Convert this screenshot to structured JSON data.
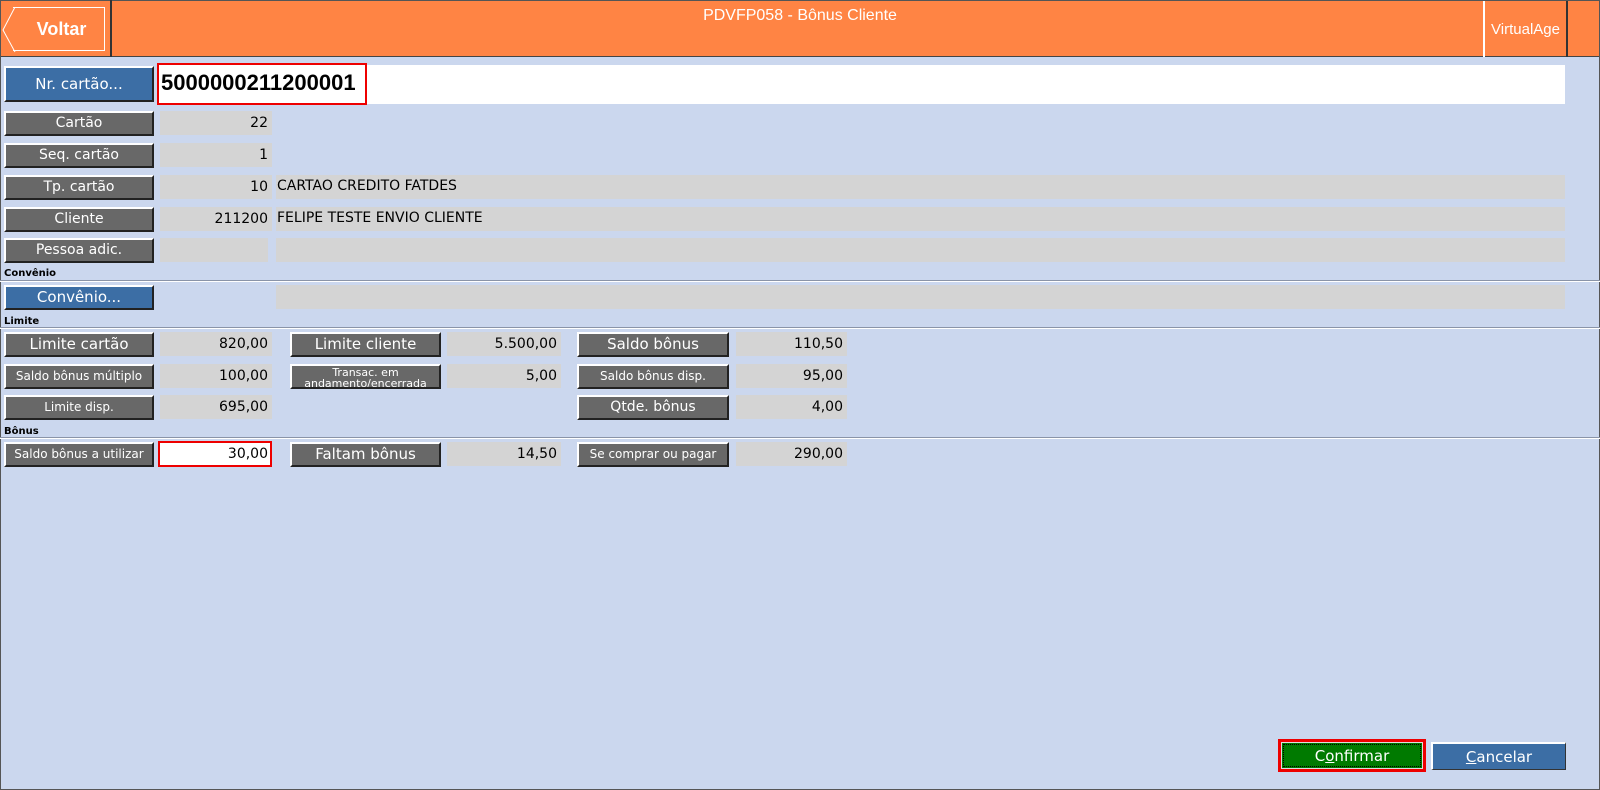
{
  "header": {
    "title": "PDVFP058 - Bônus Cliente",
    "back_label": "Voltar",
    "app_label": "VirtualAge",
    "color": "#ff8444"
  },
  "card": {
    "nr_label": "Nr. cartão...",
    "nr_value": "5000000211200001",
    "cartao_label": "Cartão",
    "cartao_value": "22",
    "seq_label": "Seq. cartão",
    "seq_value": "1",
    "tp_label": "Tp. cartão",
    "tp_value": "10",
    "tp_desc": "CARTAO CREDITO FATDES",
    "cliente_label": "Cliente",
    "cliente_value": "211200",
    "cliente_desc": "FELIPE TESTE ENVIO CLIENTE",
    "pessoa_label": "Pessoa adic.",
    "pessoa_value": "",
    "pessoa_desc": ""
  },
  "convenio": {
    "section": "Convênio",
    "button": "Convênio...",
    "desc": ""
  },
  "limite": {
    "section": "Limite",
    "limite_cartao_label": "Limite cartão",
    "limite_cartao": "820,00",
    "limite_cliente_label": "Limite cliente",
    "limite_cliente": "5.500,00",
    "saldo_bonus_label": "Saldo bônus",
    "saldo_bonus": "110,50",
    "saldo_multiplo_label": "Saldo bônus múltiplo",
    "saldo_multiplo": "100,00",
    "transac_label": "Transac. em andamento/encerrada",
    "transac": "5,00",
    "saldo_disp_label": "Saldo bônus disp.",
    "saldo_disp": "95,00",
    "limite_disp_label": "Limite disp.",
    "limite_disp": "695,00",
    "qtde_label": "Qtde. bônus",
    "qtde": "4,00"
  },
  "bonus": {
    "section": "Bônus",
    "utilizar_label": "Saldo bônus a utilizar",
    "utilizar": "30,00",
    "faltam_label": "Faltam bônus",
    "faltam": "14,50",
    "comprar_label": "Se comprar ou pagar",
    "comprar": "290,00"
  },
  "footer": {
    "confirm_first": "C",
    "confirm_u": "o",
    "confirm_rest": "nfirmar",
    "cancel_u": "C",
    "cancel_rest": "ancelar",
    "confirm_color": "#007a00",
    "cancel_color": "#3c6ea5"
  }
}
